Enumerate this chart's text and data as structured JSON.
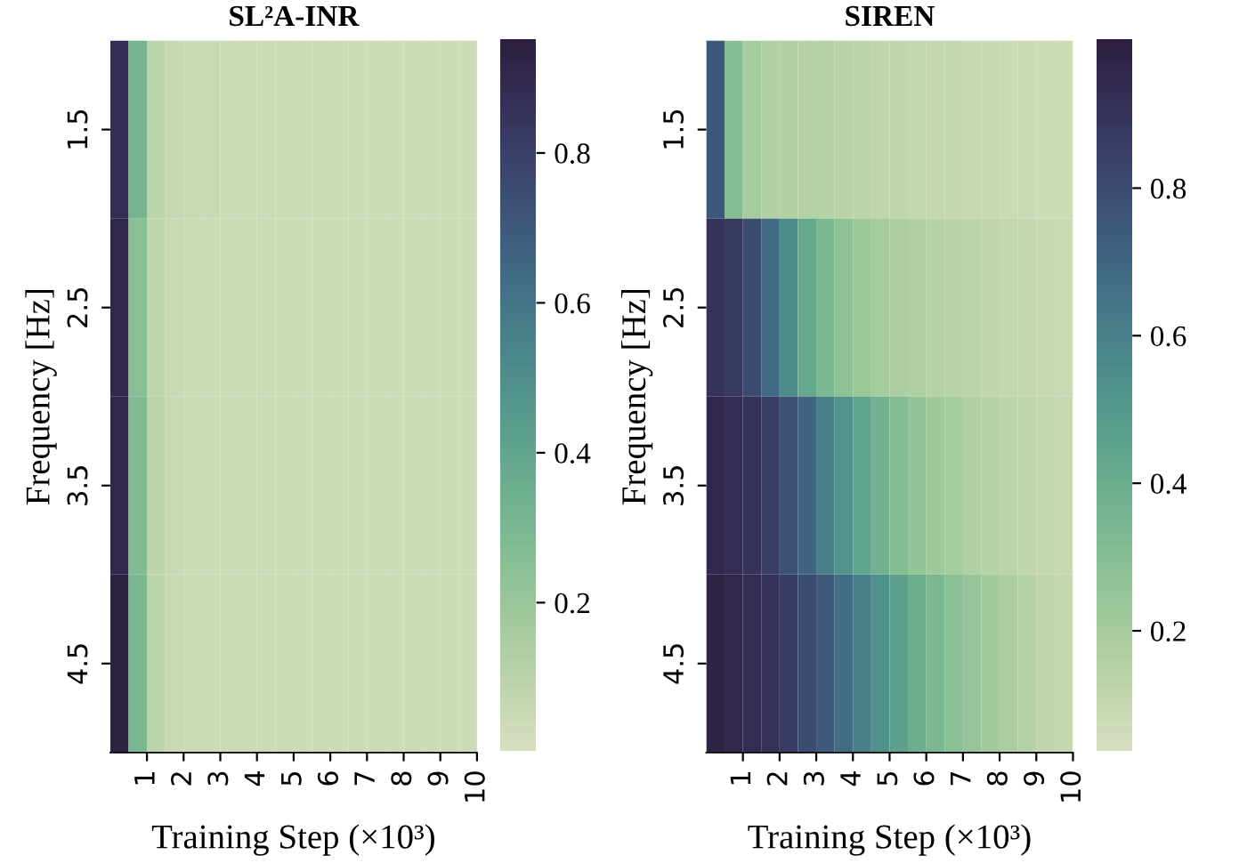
{
  "chart_data": [
    {
      "type": "heatmap",
      "title": "SL²A-INR",
      "xlabel": "Training Step (×10³)",
      "ylabel": "Frequency [Hz]",
      "x": [
        0.25,
        0.75,
        1.25,
        1.75,
        2.25,
        2.75,
        3.25,
        3.75,
        4.25,
        4.75,
        5.25,
        5.75,
        6.25,
        6.75,
        7.25,
        7.75,
        8.25,
        8.75,
        9.25,
        9.75
      ],
      "xlim": [
        0,
        10
      ],
      "xticks": [
        1,
        2,
        3,
        4,
        5,
        6,
        7,
        8,
        9,
        10
      ],
      "y_categories": [
        "1.5",
        "2.5",
        "3.5",
        "4.5"
      ],
      "cells": [
        [
          0.88,
          0.32,
          0.1,
          0.06,
          0.05,
          0.05,
          0.04,
          0.04,
          0.04,
          0.04,
          0.04,
          0.04,
          0.04,
          0.03,
          0.03,
          0.03,
          0.03,
          0.03,
          0.03,
          0.03
        ],
        [
          0.9,
          0.25,
          0.08,
          0.05,
          0.04,
          0.04,
          0.04,
          0.04,
          0.04,
          0.03,
          0.03,
          0.03,
          0.03,
          0.03,
          0.03,
          0.03,
          0.03,
          0.03,
          0.03,
          0.03
        ],
        [
          0.9,
          0.28,
          0.09,
          0.05,
          0.04,
          0.04,
          0.04,
          0.04,
          0.04,
          0.03,
          0.03,
          0.03,
          0.03,
          0.03,
          0.03,
          0.03,
          0.03,
          0.03,
          0.03,
          0.03
        ],
        [
          0.93,
          0.3,
          0.09,
          0.05,
          0.04,
          0.04,
          0.04,
          0.04,
          0.04,
          0.04,
          0.03,
          0.03,
          0.03,
          0.03,
          0.03,
          0.03,
          0.03,
          0.03,
          0.03,
          0.03
        ]
      ],
      "clim": [
        0.0,
        0.95
      ],
      "cticks": [
        0.2,
        0.4,
        0.6,
        0.8
      ]
    },
    {
      "type": "heatmap",
      "title": "SIREN",
      "xlabel": "Training Step (×10³)",
      "ylabel": "Frequency [Hz]",
      "x": [
        0.25,
        0.75,
        1.25,
        1.75,
        2.25,
        2.75,
        3.25,
        3.75,
        4.25,
        4.75,
        5.25,
        5.75,
        6.25,
        6.75,
        7.25,
        7.75,
        8.25,
        8.75,
        9.25,
        9.75
      ],
      "xlim": [
        0,
        10
      ],
      "xticks": [
        1,
        2,
        3,
        4,
        5,
        6,
        7,
        8,
        9,
        10
      ],
      "y_categories": [
        "1.5",
        "2.5",
        "3.5",
        "4.5"
      ],
      "cells": [
        [
          0.75,
          0.3,
          0.2,
          0.17,
          0.16,
          0.15,
          0.15,
          0.14,
          0.13,
          0.12,
          0.12,
          0.11,
          0.1,
          0.1,
          0.09,
          0.09,
          0.08,
          0.08,
          0.07,
          0.07
        ],
        [
          0.9,
          0.88,
          0.8,
          0.68,
          0.55,
          0.42,
          0.33,
          0.27,
          0.23,
          0.2,
          0.18,
          0.17,
          0.15,
          0.14,
          0.13,
          0.12,
          0.11,
          0.1,
          0.09,
          0.08
        ],
        [
          0.95,
          0.93,
          0.9,
          0.85,
          0.78,
          0.7,
          0.6,
          0.52,
          0.44,
          0.37,
          0.31,
          0.26,
          0.22,
          0.2,
          0.17,
          0.15,
          0.13,
          0.12,
          0.1,
          0.09
        ],
        [
          0.97,
          0.95,
          0.93,
          0.9,
          0.86,
          0.8,
          0.74,
          0.67,
          0.6,
          0.53,
          0.46,
          0.4,
          0.34,
          0.29,
          0.25,
          0.21,
          0.18,
          0.15,
          0.12,
          0.1
        ]
      ],
      "clim": [
        0.035,
        1.0
      ],
      "cticks": [
        0.2,
        0.4,
        0.6,
        0.8
      ]
    }
  ]
}
